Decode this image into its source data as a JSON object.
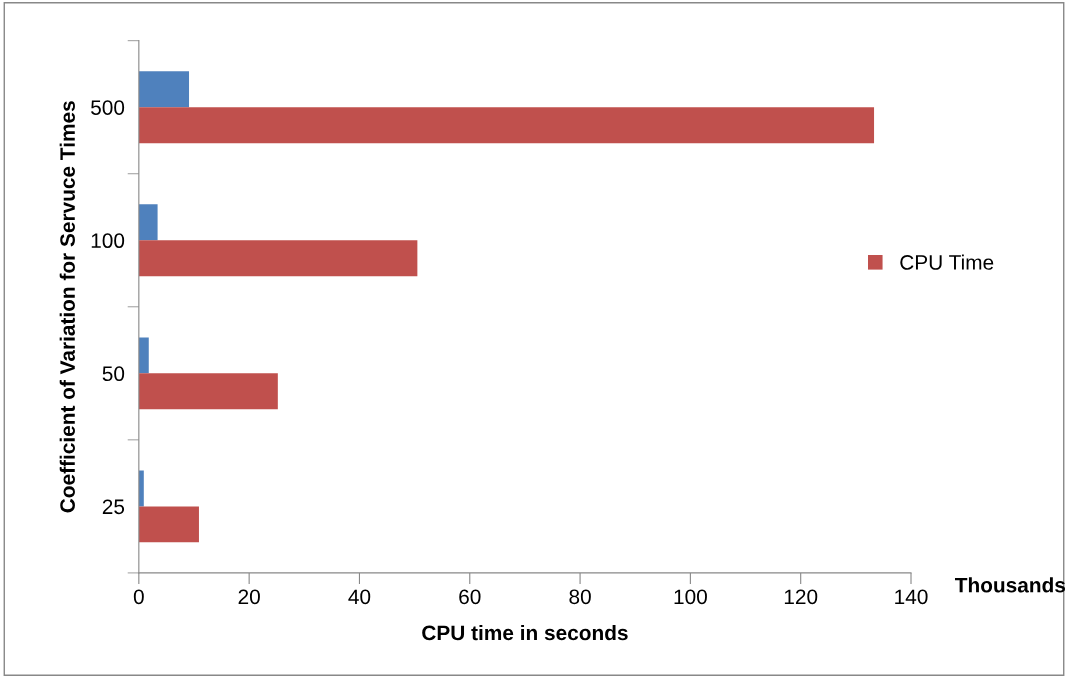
{
  "chart_data": {
    "type": "bar",
    "orientation": "horizontal",
    "xlabel": "CPU time in seconds",
    "ylabel": "Coefficient of Variation for Servuce Times",
    "categories": [
      "500",
      "100",
      "50",
      "25"
    ],
    "series": [
      {
        "color": "#4f81bd",
        "values": [
          9.1,
          3.4,
          1.8,
          0.9
        ]
      },
      {
        "name": "CPU Time",
        "color": "#c0504d",
        "values": [
          133.3,
          50.5,
          25.2,
          10.9
        ]
      }
    ],
    "xlim": [
      0,
      140
    ],
    "xticks": [
      0,
      20,
      40,
      60,
      80,
      100,
      120,
      140
    ],
    "grid": false,
    "legend": "right",
    "annotations": [
      "Thousands"
    ]
  }
}
